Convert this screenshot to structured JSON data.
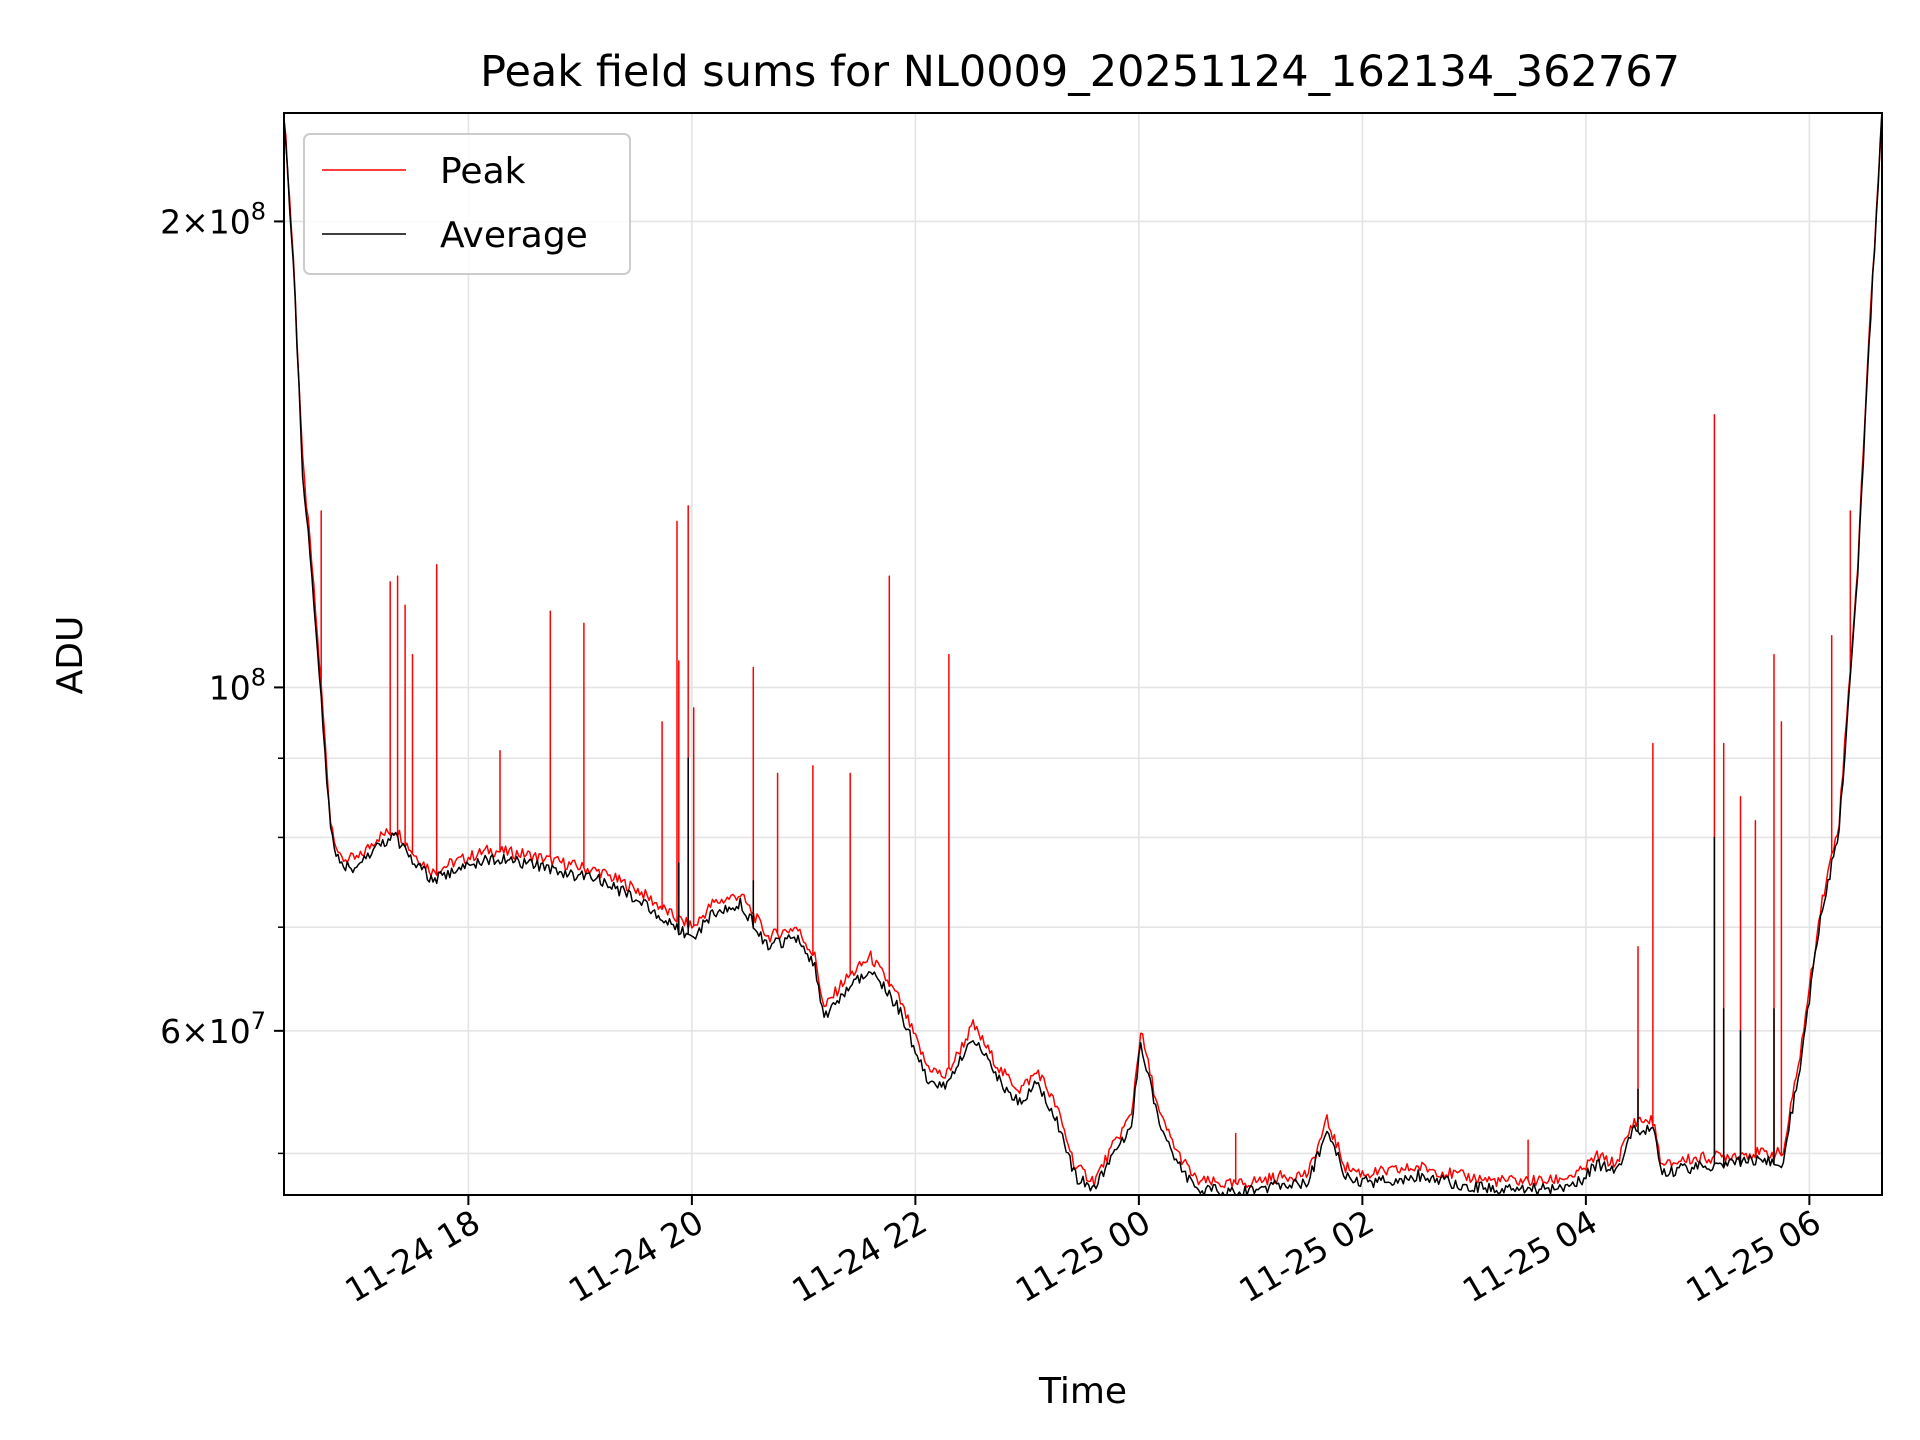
{
  "chart_data": {
    "type": "line",
    "title": "Peak field sums for NL0009_20251124_162134_362767",
    "xlabel": "Time",
    "ylabel": "ADU",
    "yscale": "log",
    "ylim": [
      47000000,
      235000000
    ],
    "xlim": [
      "2025-11-24 16:21",
      "2025-11-25 06:39"
    ],
    "grid": true,
    "legend_position": "top-left",
    "x_ticks": [
      {
        "value": "2025-11-24 18:00",
        "label": "11-24 18"
      },
      {
        "value": "2025-11-24 20:00",
        "label": "11-24 20"
      },
      {
        "value": "2025-11-24 22:00",
        "label": "11-24 22"
      },
      {
        "value": "2025-11-25 00:00",
        "label": "11-25 00"
      },
      {
        "value": "2025-11-25 02:00",
        "label": "11-25 02"
      },
      {
        "value": "2025-11-25 04:00",
        "label": "11-25 04"
      },
      {
        "value": "2025-11-25 06:00",
        "label": "11-25 06"
      }
    ],
    "y_ticks": [
      {
        "value": 200000000,
        "mantissa": "2",
        "exponent": "8"
      },
      {
        "value": 100000000,
        "mantissa": "",
        "exponent": "8"
      },
      {
        "value": 60000000,
        "mantissa": "6",
        "exponent": "7"
      }
    ],
    "y_minor_ticks": [
      50000000,
      70000000,
      80000000,
      90000000
    ],
    "series": [
      {
        "name": "Peak",
        "color": "#ff0000",
        "baseline": [
          [
            "2025-11-24 16:21",
            235000000
          ],
          [
            "2025-11-24 16:26",
            190000000
          ],
          [
            "2025-11-24 16:31",
            140000000
          ],
          [
            "2025-11-24 16:36",
            120000000
          ],
          [
            "2025-11-24 16:41",
            100000000
          ],
          [
            "2025-11-24 16:46",
            82000000
          ],
          [
            "2025-11-24 16:51",
            77500000
          ],
          [
            "2025-11-24 17:01",
            77500000
          ],
          [
            "2025-11-24 17:11",
            80000000
          ],
          [
            "2025-11-24 17:21",
            81000000
          ],
          [
            "2025-11-24 17:31",
            78000000
          ],
          [
            "2025-11-24 17:41",
            76000000
          ],
          [
            "2025-11-24 17:51",
            77000000
          ],
          [
            "2025-11-24 18:11",
            78500000
          ],
          [
            "2025-11-24 18:31",
            78000000
          ],
          [
            "2025-11-24 18:51",
            77000000
          ],
          [
            "2025-11-24 19:11",
            76000000
          ],
          [
            "2025-11-24 19:31",
            74000000
          ],
          [
            "2025-11-24 19:51",
            71000000
          ],
          [
            "2025-11-24 20:01",
            70000000
          ],
          [
            "2025-11-24 20:11",
            72500000
          ],
          [
            "2025-11-24 20:26",
            73500000
          ],
          [
            "2025-11-24 20:41",
            69000000
          ],
          [
            "2025-11-24 20:56",
            70000000
          ],
          [
            "2025-11-24 21:06",
            67000000
          ],
          [
            "2025-11-24 21:11",
            62000000
          ],
          [
            "2025-11-24 21:21",
            64500000
          ],
          [
            "2025-11-24 21:36",
            67000000
          ],
          [
            "2025-11-24 21:51",
            63000000
          ],
          [
            "2025-11-24 22:06",
            57000000
          ],
          [
            "2025-11-24 22:16",
            56000000
          ],
          [
            "2025-11-24 22:31",
            60500000
          ],
          [
            "2025-11-24 22:46",
            56500000
          ],
          [
            "2025-11-24 22:56",
            55000000
          ],
          [
            "2025-11-24 23:06",
            56500000
          ],
          [
            "2025-11-24 23:16",
            53500000
          ],
          [
            "2025-11-24 23:26",
            49000000
          ],
          [
            "2025-11-24 23:36",
            48000000
          ],
          [
            "2025-11-24 23:46",
            50500000
          ],
          [
            "2025-11-24 23:56",
            53000000
          ],
          [
            "2025-11-25 00:01",
            60000000
          ],
          [
            "2025-11-25 00:11",
            53000000
          ],
          [
            "2025-11-25 00:21",
            50000000
          ],
          [
            "2025-11-25 00:31",
            48000000
          ],
          [
            "2025-11-25 00:51",
            47700000
          ],
          [
            "2025-11-25 01:16",
            48300000
          ],
          [
            "2025-11-25 01:31",
            48500000
          ],
          [
            "2025-11-25 01:41",
            52500000
          ],
          [
            "2025-11-25 01:51",
            49000000
          ],
          [
            "2025-11-25 02:01",
            48500000
          ],
          [
            "2025-11-25 02:16",
            48700000
          ],
          [
            "2025-11-25 02:31",
            49000000
          ],
          [
            "2025-11-25 02:51",
            48400000
          ],
          [
            "2025-11-25 03:11",
            48000000
          ],
          [
            "2025-11-25 03:41",
            48000000
          ],
          [
            "2025-11-25 03:56",
            48500000
          ],
          [
            "2025-11-25 04:06",
            49800000
          ],
          [
            "2025-11-25 04:16",
            49200000
          ],
          [
            "2025-11-25 04:26",
            52500000
          ],
          [
            "2025-11-25 04:36",
            52500000
          ],
          [
            "2025-11-25 04:41",
            49000000
          ],
          [
            "2025-11-25 04:51",
            49500000
          ],
          [
            "2025-11-25 05:06",
            49700000
          ],
          [
            "2025-11-25 05:26",
            50000000
          ],
          [
            "2025-11-25 05:46",
            50000000
          ],
          [
            "2025-11-25 05:56",
            59000000
          ],
          [
            "2025-11-25 06:06",
            72000000
          ],
          [
            "2025-11-25 06:16",
            82000000
          ],
          [
            "2025-11-25 06:26",
            120000000
          ],
          [
            "2025-11-25 06:31",
            160000000
          ],
          [
            "2025-11-25 06:39",
            235000000
          ]
        ],
        "spikes": [
          [
            "2025-11-24 16:41",
            130000000
          ],
          [
            "2025-11-24 17:18",
            117000000
          ],
          [
            "2025-11-24 17:22",
            118000000
          ],
          [
            "2025-11-24 17:26",
            113000000
          ],
          [
            "2025-11-24 17:30",
            105000000
          ],
          [
            "2025-11-24 17:43",
            120000000
          ],
          [
            "2025-11-24 18:17",
            91000000
          ],
          [
            "2025-11-24 18:44",
            112000000
          ],
          [
            "2025-11-24 19:02",
            110000000
          ],
          [
            "2025-11-24 19:44",
            95000000
          ],
          [
            "2025-11-24 19:52",
            128000000
          ],
          [
            "2025-11-24 19:53",
            104000000
          ],
          [
            "2025-11-24 19:58",
            131000000
          ],
          [
            "2025-11-24 20:01",
            97000000
          ],
          [
            "2025-11-24 20:33",
            103000000
          ],
          [
            "2025-11-24 20:46",
            88000000
          ],
          [
            "2025-11-24 21:05",
            89000000
          ],
          [
            "2025-11-24 21:25",
            88000000
          ],
          [
            "2025-11-24 21:46",
            118000000
          ],
          [
            "2025-11-24 22:18",
            105000000
          ],
          [
            "2025-11-25 00:52",
            51500000
          ],
          [
            "2025-11-25 03:29",
            51000000
          ],
          [
            "2025-11-25 04:28",
            68000000
          ],
          [
            "2025-11-25 04:36",
            92000000
          ],
          [
            "2025-11-25 05:09",
            150000000
          ],
          [
            "2025-11-25 05:14",
            92000000
          ],
          [
            "2025-11-25 05:23",
            85000000
          ],
          [
            "2025-11-25 05:31",
            82000000
          ],
          [
            "2025-11-25 05:41",
            105000000
          ],
          [
            "2025-11-25 05:45",
            95000000
          ],
          [
            "2025-11-25 06:12",
            108000000
          ],
          [
            "2025-11-25 06:22",
            130000000
          ]
        ]
      },
      {
        "name": "Average",
        "color": "#000000",
        "baseline": [
          [
            "2025-11-24 16:21",
            235000000
          ],
          [
            "2025-11-24 16:26",
            188000000
          ],
          [
            "2025-11-24 16:31",
            138000000
          ],
          [
            "2025-11-24 16:36",
            118000000
          ],
          [
            "2025-11-24 16:41",
            98000000
          ],
          [
            "2025-11-24 16:46",
            81000000
          ],
          [
            "2025-11-24 16:51",
            76500000
          ],
          [
            "2025-11-24 17:01",
            76500000
          ],
          [
            "2025-11-24 17:11",
            79000000
          ],
          [
            "2025-11-24 17:21",
            80000000
          ],
          [
            "2025-11-24 17:31",
            77000000
          ],
          [
            "2025-11-24 17:41",
            75000000
          ],
          [
            "2025-11-24 17:51",
            76000000
          ],
          [
            "2025-11-24 18:11",
            77500000
          ],
          [
            "2025-11-24 18:31",
            77000000
          ],
          [
            "2025-11-24 18:51",
            76000000
          ],
          [
            "2025-11-24 19:11",
            75000000
          ],
          [
            "2025-11-24 19:31",
            73000000
          ],
          [
            "2025-11-24 19:51",
            70000000
          ],
          [
            "2025-11-24 20:01",
            69000000
          ],
          [
            "2025-11-24 20:11",
            71500000
          ],
          [
            "2025-11-24 20:26",
            72500000
          ],
          [
            "2025-11-24 20:41",
            68000000
          ],
          [
            "2025-11-24 20:56",
            69000000
          ],
          [
            "2025-11-24 21:06",
            66000000
          ],
          [
            "2025-11-24 21:11",
            61000000
          ],
          [
            "2025-11-24 21:21",
            63500000
          ],
          [
            "2025-11-24 21:36",
            66000000
          ],
          [
            "2025-11-24 21:51",
            62000000
          ],
          [
            "2025-11-24 22:06",
            56000000
          ],
          [
            "2025-11-24 22:16",
            55000000
          ],
          [
            "2025-11-24 22:31",
            59500000
          ],
          [
            "2025-11-24 22:46",
            55500000
          ],
          [
            "2025-11-24 22:56",
            54000000
          ],
          [
            "2025-11-24 23:06",
            55500000
          ],
          [
            "2025-11-24 23:16",
            52500000
          ],
          [
            "2025-11-24 23:26",
            48300000
          ],
          [
            "2025-11-24 23:36",
            47400000
          ],
          [
            "2025-11-24 23:46",
            49800000
          ],
          [
            "2025-11-24 23:56",
            52300000
          ],
          [
            "2025-11-25 00:01",
            59000000
          ],
          [
            "2025-11-25 00:11",
            52300000
          ],
          [
            "2025-11-25 00:21",
            49300000
          ],
          [
            "2025-11-25 00:31",
            47400000
          ],
          [
            "2025-11-25 00:51",
            47200000
          ],
          [
            "2025-11-25 01:16",
            47700000
          ],
          [
            "2025-11-25 01:31",
            47900000
          ],
          [
            "2025-11-25 01:41",
            51800000
          ],
          [
            "2025-11-25 01:51",
            48400000
          ],
          [
            "2025-11-25 02:01",
            47900000
          ],
          [
            "2025-11-25 02:16",
            48100000
          ],
          [
            "2025-11-25 02:31",
            48400000
          ],
          [
            "2025-11-25 02:51",
            47800000
          ],
          [
            "2025-11-25 03:11",
            47400000
          ],
          [
            "2025-11-25 03:41",
            47400000
          ],
          [
            "2025-11-25 03:56",
            47900000
          ],
          [
            "2025-11-25 04:06",
            49200000
          ],
          [
            "2025-11-25 04:16",
            48600000
          ],
          [
            "2025-11-25 04:26",
            51800000
          ],
          [
            "2025-11-25 04:36",
            51800000
          ],
          [
            "2025-11-25 04:41",
            48400000
          ],
          [
            "2025-11-25 04:51",
            48900000
          ],
          [
            "2025-11-25 05:06",
            49100000
          ],
          [
            "2025-11-25 05:26",
            49400000
          ],
          [
            "2025-11-25 05:46",
            49400000
          ],
          [
            "2025-11-25 05:56",
            58000000
          ],
          [
            "2025-11-25 06:06",
            71000000
          ],
          [
            "2025-11-25 06:16",
            81000000
          ],
          [
            "2025-11-25 06:26",
            119000000
          ],
          [
            "2025-11-25 06:31",
            158000000
          ],
          [
            "2025-11-25 06:39",
            235000000
          ]
        ],
        "spikes": [
          [
            "2025-11-24 19:53",
            77000000
          ],
          [
            "2025-11-24 19:58",
            90000000
          ],
          [
            "2025-11-24 20:33",
            75000000
          ],
          [
            "2025-11-25 04:28",
            55000000
          ],
          [
            "2025-11-25 05:09",
            80000000
          ],
          [
            "2025-11-25 05:14",
            62000000
          ],
          [
            "2025-11-25 05:23",
            60000000
          ],
          [
            "2025-11-25 05:41",
            62000000
          ]
        ]
      }
    ]
  }
}
